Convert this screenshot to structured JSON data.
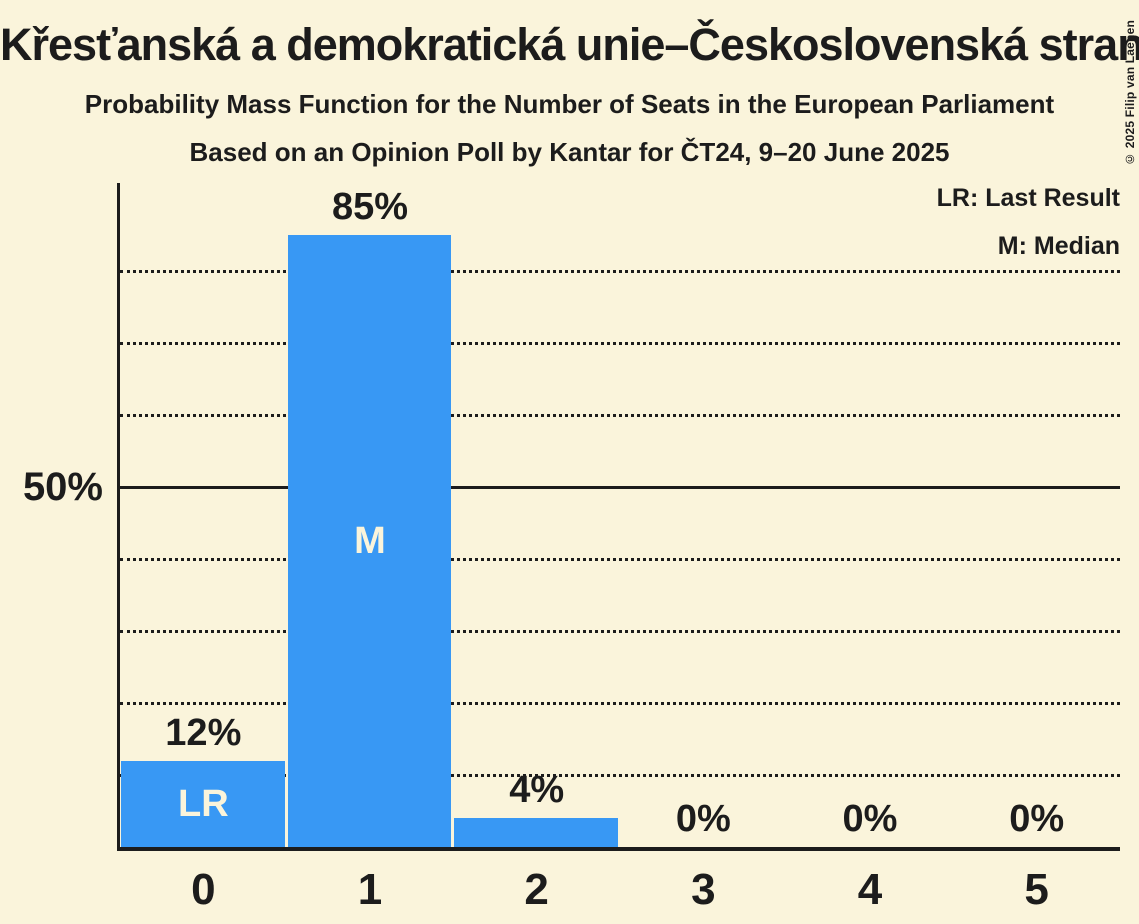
{
  "title": "Křesťanská a demokratická unie–Československá strana lidová (EPP)",
  "subtitle": "Probability Mass Function for the Number of Seats in the European Parliament",
  "poll_details": "Based on an Opinion Poll by Kantar for ČT24, 9–20 June 2025",
  "copyright": "© 2025 Filip van Laenen",
  "legend": {
    "last_result": "LR: Last Result",
    "median": "M: Median"
  },
  "y_axis_label": "50%",
  "colors": {
    "background": "#FAF4DB",
    "bar": "#3898F4",
    "text": "#1C1C1C",
    "bar_label": "#FAF4DB"
  },
  "chart_data": {
    "type": "bar",
    "title": "Probability Mass Function for the Number of Seats in the European Parliament",
    "categories": [
      "0",
      "1",
      "2",
      "3",
      "4",
      "5"
    ],
    "values": [
      12,
      85,
      4,
      0,
      0,
      0
    ],
    "value_labels": [
      "12%",
      "85%",
      "4%",
      "0%",
      "0%",
      "0%"
    ],
    "bar_annotations": [
      "LR",
      "M",
      "",
      "",
      "",
      ""
    ],
    "annotation_legend": {
      "LR": "Last Result",
      "M": "Median"
    },
    "ylabel": "",
    "xlabel": "",
    "ylim": [
      0,
      92
    ],
    "y_tick_labels": [
      "50%"
    ],
    "dotted_gridlines_pct": [
      10,
      20,
      30,
      40,
      60,
      70,
      80
    ],
    "solid_gridline_pct": 50,
    "grid": "dotted-horizontal",
    "legend_position": "top-right"
  }
}
